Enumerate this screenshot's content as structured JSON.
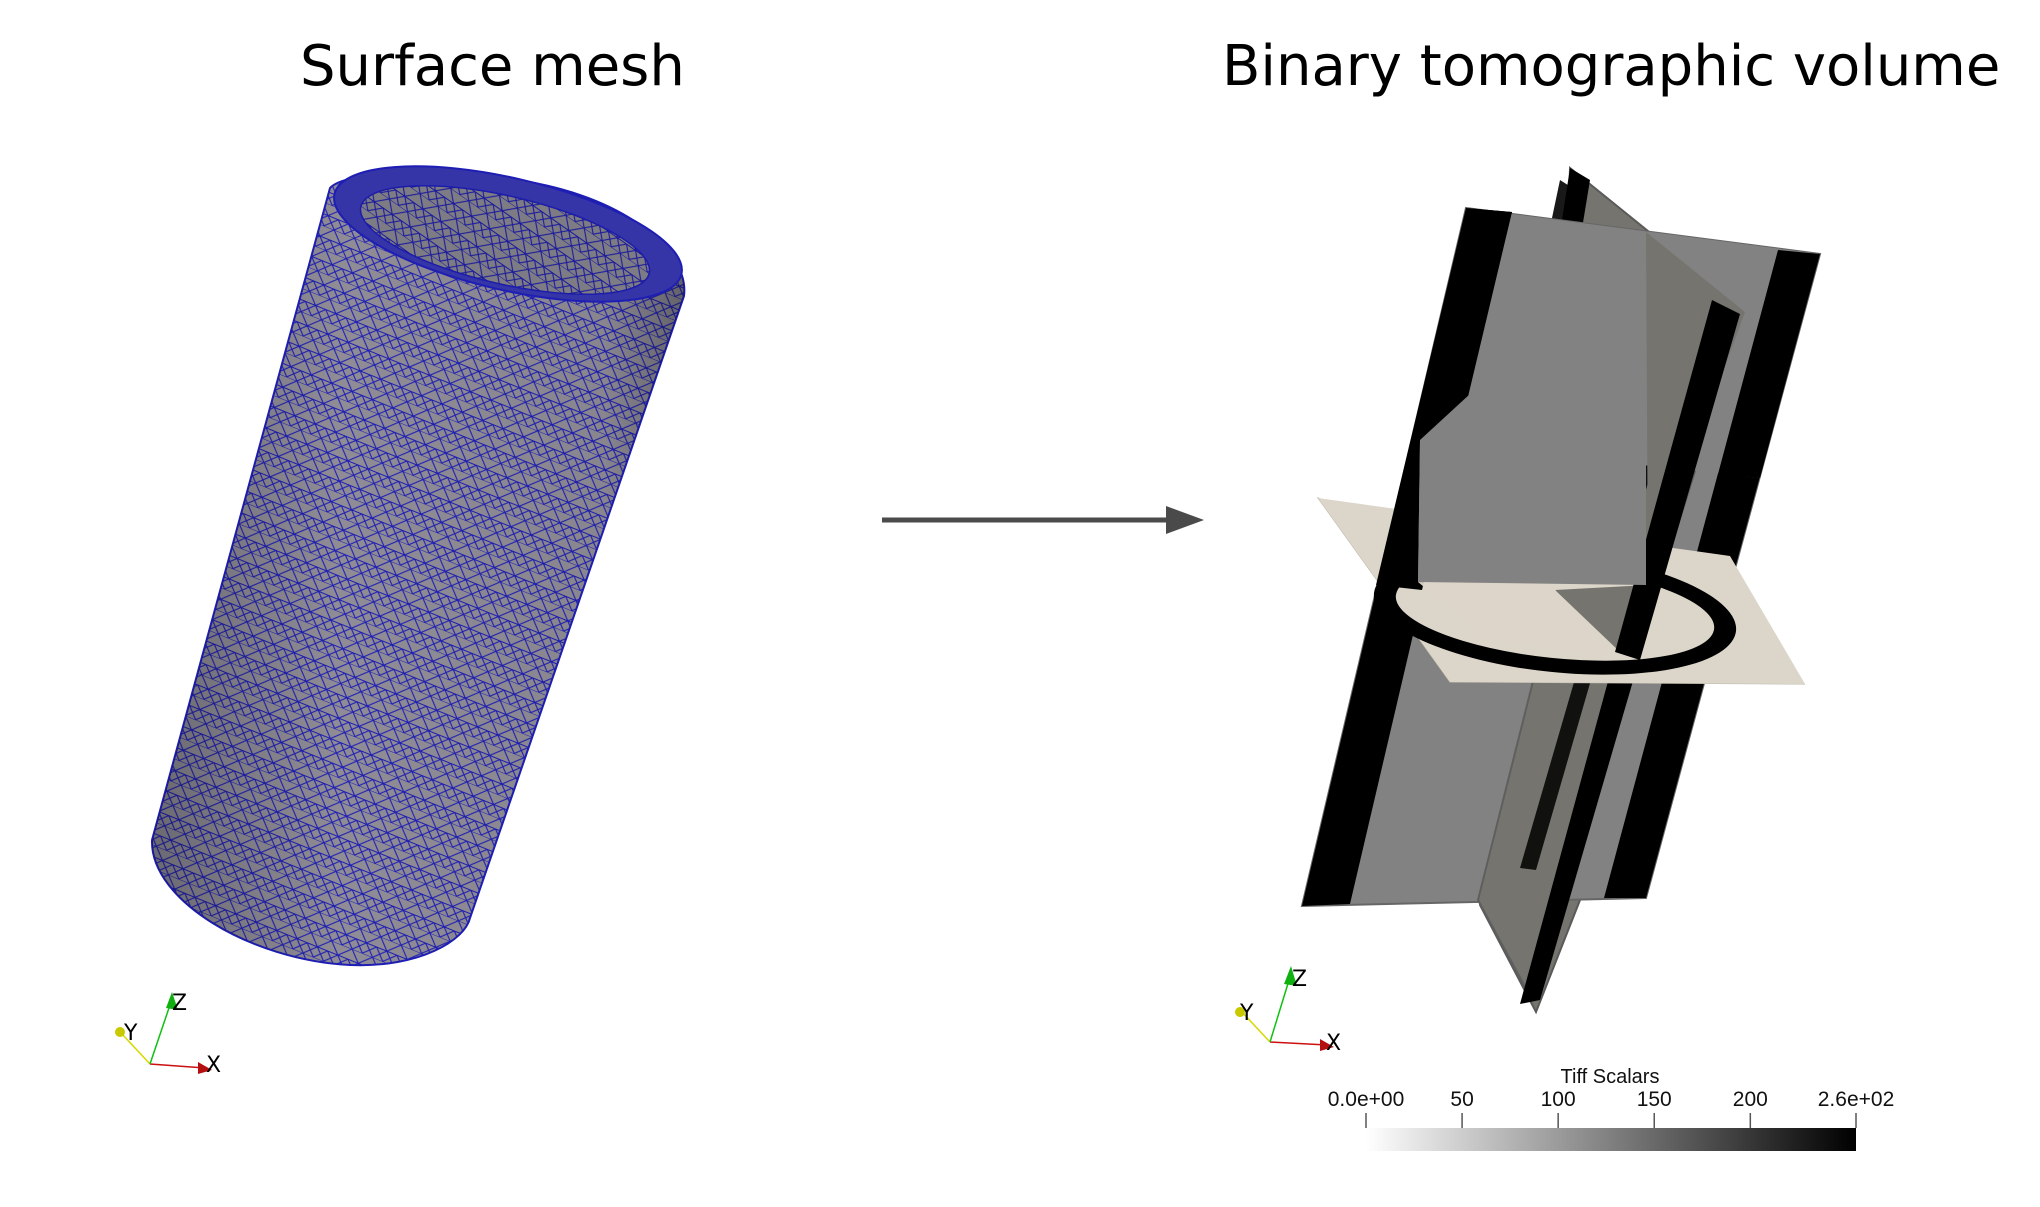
{
  "titles": {
    "left": "Surface mesh",
    "right": "Binary tomographic volume"
  },
  "orientation_axes": {
    "x": "X",
    "y": "Y",
    "z": "Z",
    "colors": {
      "x": "#cc1010",
      "y": "#d8d800",
      "z": "#10c010"
    }
  },
  "colorbar": {
    "title": "Tiff Scalars",
    "ticks": [
      {
        "value": 0,
        "label": "0.0e+00"
      },
      {
        "value": 50,
        "label": "50"
      },
      {
        "value": 100,
        "label": "100"
      },
      {
        "value": 150,
        "label": "150"
      },
      {
        "value": 200,
        "label": "200"
      },
      {
        "value": 255,
        "label": "2.6e+02"
      }
    ],
    "range": [
      0,
      255
    ],
    "colors": {
      "low": "#ffffff",
      "high": "#000000"
    }
  },
  "colors": {
    "mesh_surface": "#8f8c96",
    "mesh_lines": "#1e1eb4",
    "slice_gray": "#828282",
    "slice_dark_gray": "#75746f",
    "horizontal_slice": "#dcd5c9",
    "arrow": "#4a4a4a"
  }
}
